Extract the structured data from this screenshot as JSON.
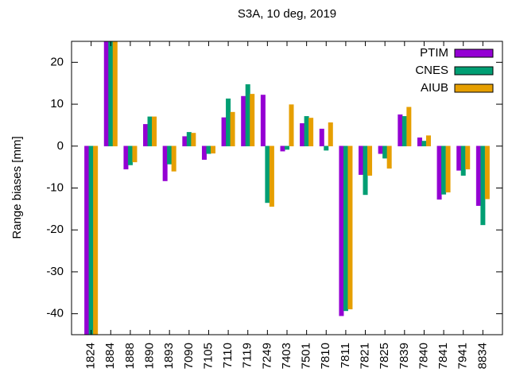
{
  "chart_data": {
    "type": "bar",
    "title": "S3A, 10 deg, 2019",
    "y_label": "Range biases [mm]",
    "categories": [
      "1824",
      "1884",
      "1888",
      "1890",
      "1893",
      "7090",
      "7105",
      "7110",
      "7119",
      "7249",
      "7403",
      "7501",
      "7810",
      "7811",
      "7821",
      "7825",
      "7839",
      "7840",
      "7841",
      "7941",
      "8834"
    ],
    "series": [
      {
        "name": "PTIM",
        "color": "#9400d3",
        "values": [
          -47,
          26,
          -5.5,
          5.2,
          -8.3,
          2.3,
          -3.2,
          6.8,
          11.9,
          12.2,
          -1.2,
          5.4,
          4.1,
          -40.5,
          -6.8,
          -1.8,
          7.5,
          2.0,
          -12.7,
          -5.8,
          -14.2
        ]
      },
      {
        "name": "CNES",
        "color": "#009e73",
        "values": [
          -47,
          26,
          -4.5,
          7.0,
          -4.3,
          3.3,
          -1.8,
          11.3,
          14.7,
          -13.5,
          -0.8,
          7.1,
          -1.0,
          -39.3,
          -11.6,
          -2.9,
          7.1,
          1.2,
          -11.5,
          -7.0,
          -18.8
        ]
      },
      {
        "name": "AIUB",
        "color": "#e69f00",
        "values": [
          -47,
          26,
          -3.8,
          7.0,
          -6.0,
          3.1,
          -1.7,
          8.1,
          12.4,
          -14.4,
          9.9,
          6.7,
          5.6,
          -38.9,
          -7.0,
          -5.3,
          9.3,
          2.5,
          -11.0,
          -5.5,
          -12.6
        ]
      }
    ],
    "ylim": [
      -45,
      25
    ],
    "yticks": [
      -40,
      -30,
      -20,
      -10,
      0,
      10,
      20
    ],
    "legend": "top-right"
  }
}
